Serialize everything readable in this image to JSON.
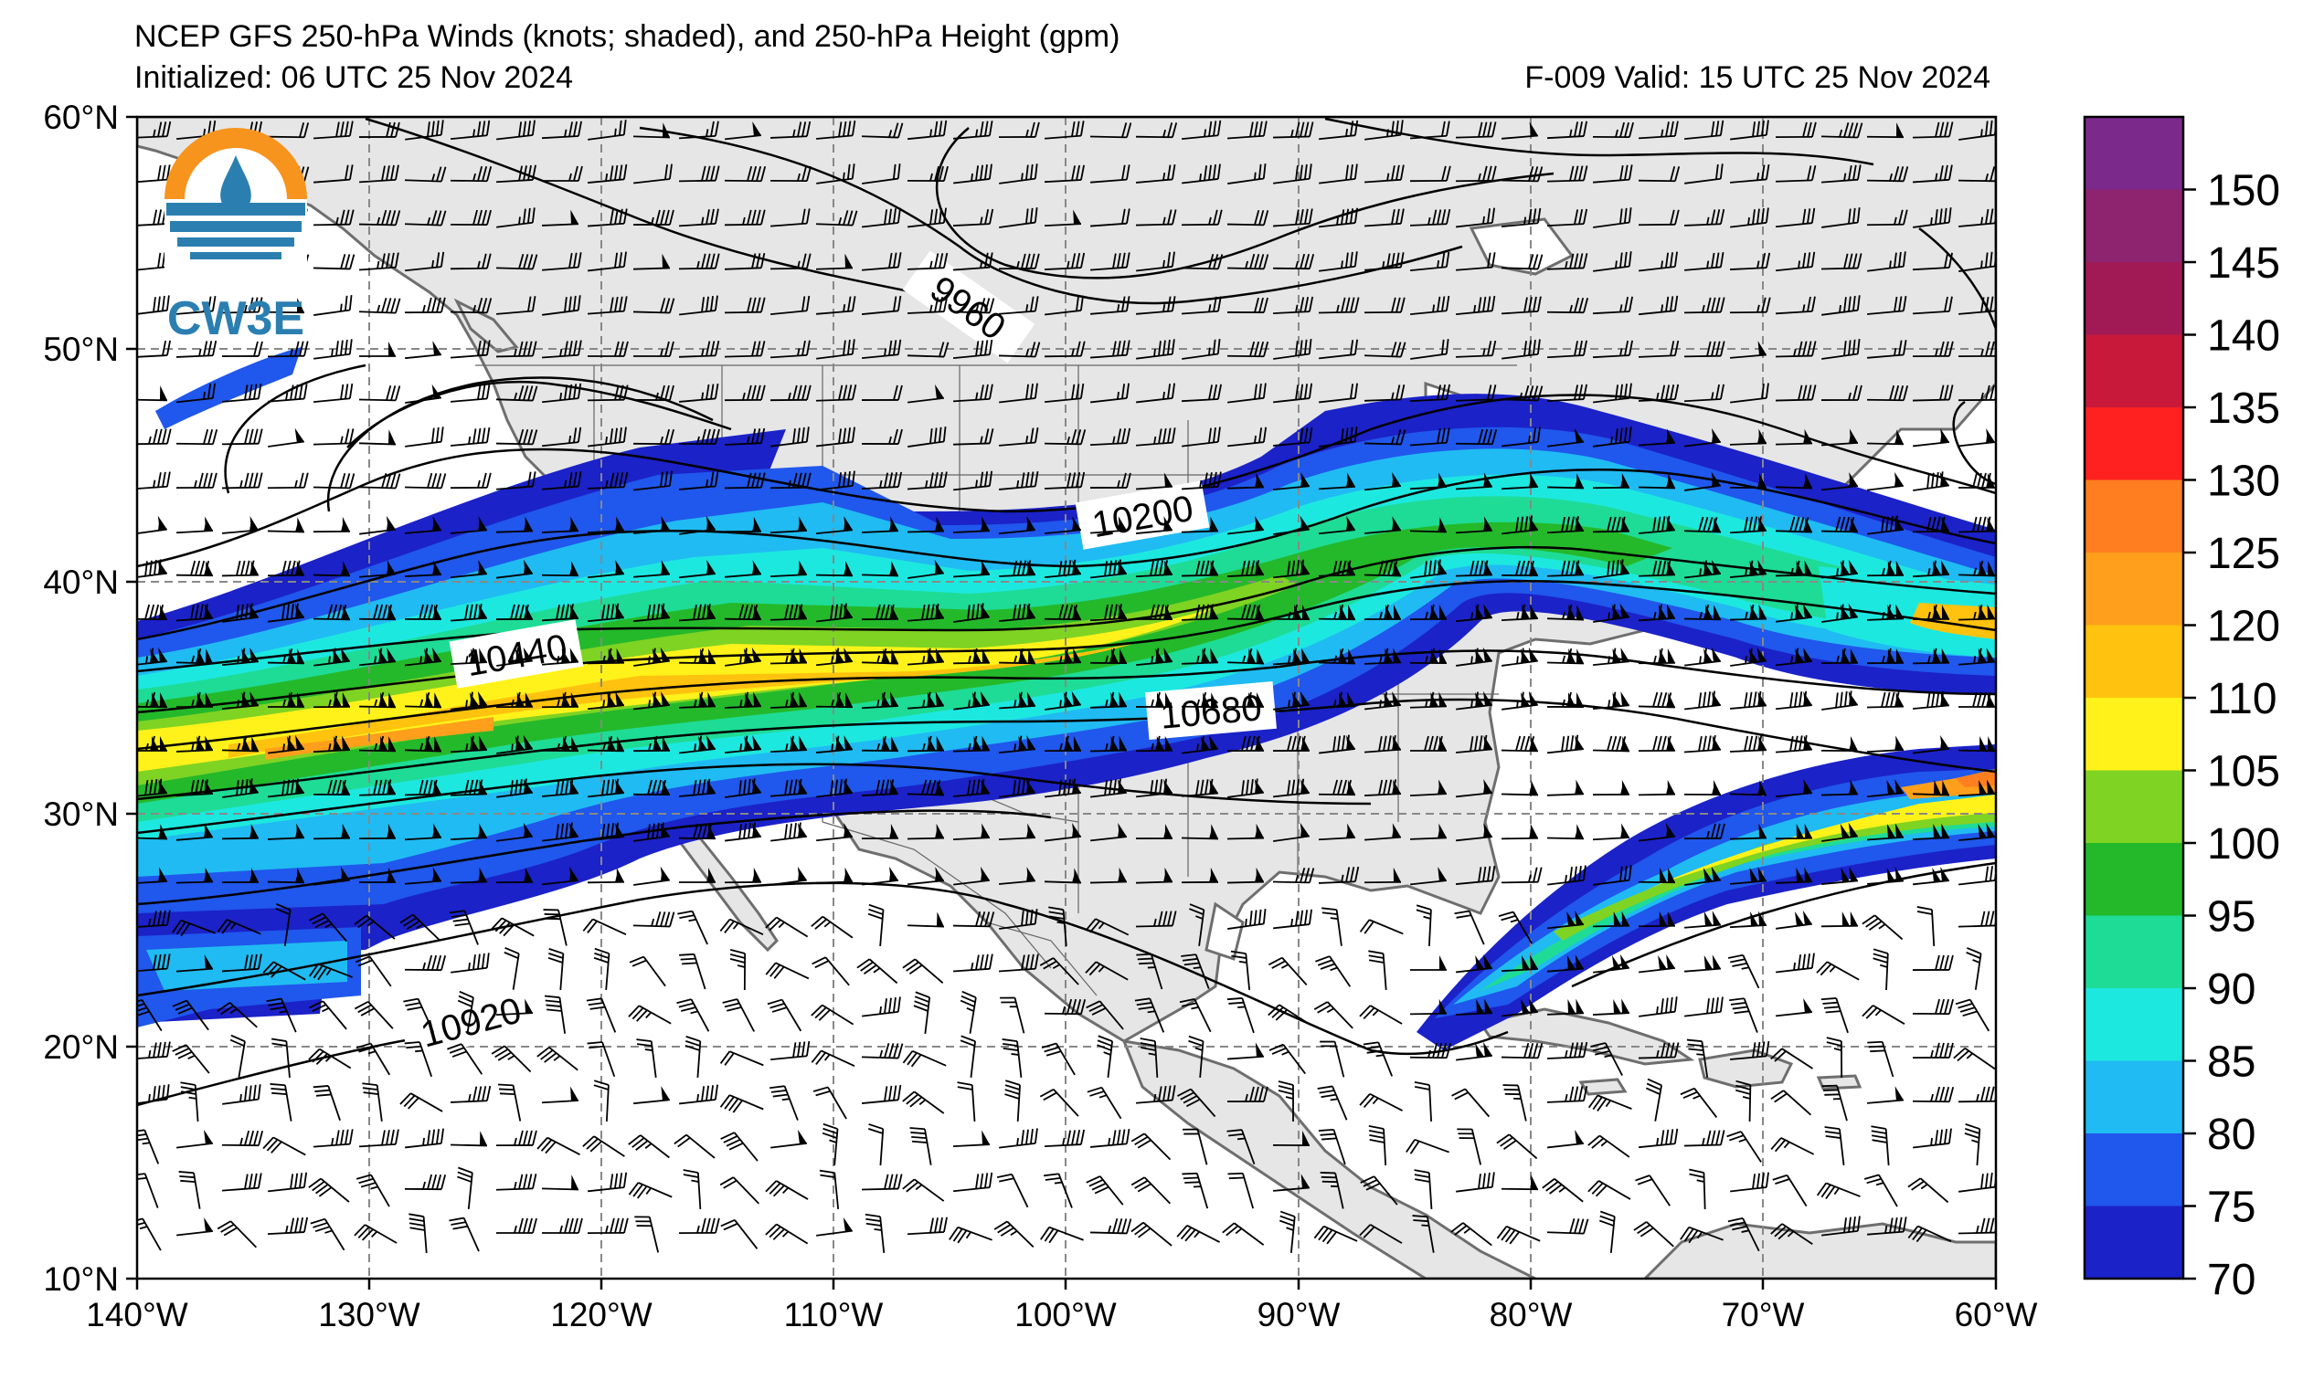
{
  "header": {
    "title_line1": "NCEP GFS 250-hPa Winds (knots; shaded), and 250-hPa Height (gpm)",
    "initialized": "Initialized: 06 UTC 25 Nov 2024",
    "valid": "F-009  Valid: 15 UTC 25 Nov 2024"
  },
  "logo": {
    "text": "CW3E"
  },
  "axes": {
    "lon_labels": [
      "140°W",
      "130°W",
      "120°W",
      "110°W",
      "100°W",
      "90°W",
      "80°W",
      "70°W",
      "60°W"
    ],
    "lat_labels": [
      "60°N",
      "50°N",
      "40°N",
      "30°N",
      "20°N",
      "10°N"
    ]
  },
  "contour_labels": [
    "9960",
    "10200",
    "10440",
    "10680",
    "10920"
  ],
  "colorbar": {
    "labels": [
      "150",
      "145",
      "140",
      "135",
      "130",
      "125",
      "120",
      "110",
      "105",
      "100",
      "95",
      "90",
      "85",
      "80",
      "75",
      "70"
    ],
    "colors": [
      "#7b2a8c",
      "#8e2370",
      "#a11a55",
      "#c8193a",
      "#ff2020",
      "#ff7e1f",
      "#ff9f1c",
      "#ffc20e",
      "#fff21a",
      "#7fd323",
      "#24b92a",
      "#1edc96",
      "#1de8e0",
      "#20bbf2",
      "#2057ec",
      "#1b22c8"
    ]
  },
  "colors": {
    "land": "#e6e6e6",
    "coast": "#6e6e6e",
    "grid": "#888888"
  }
}
